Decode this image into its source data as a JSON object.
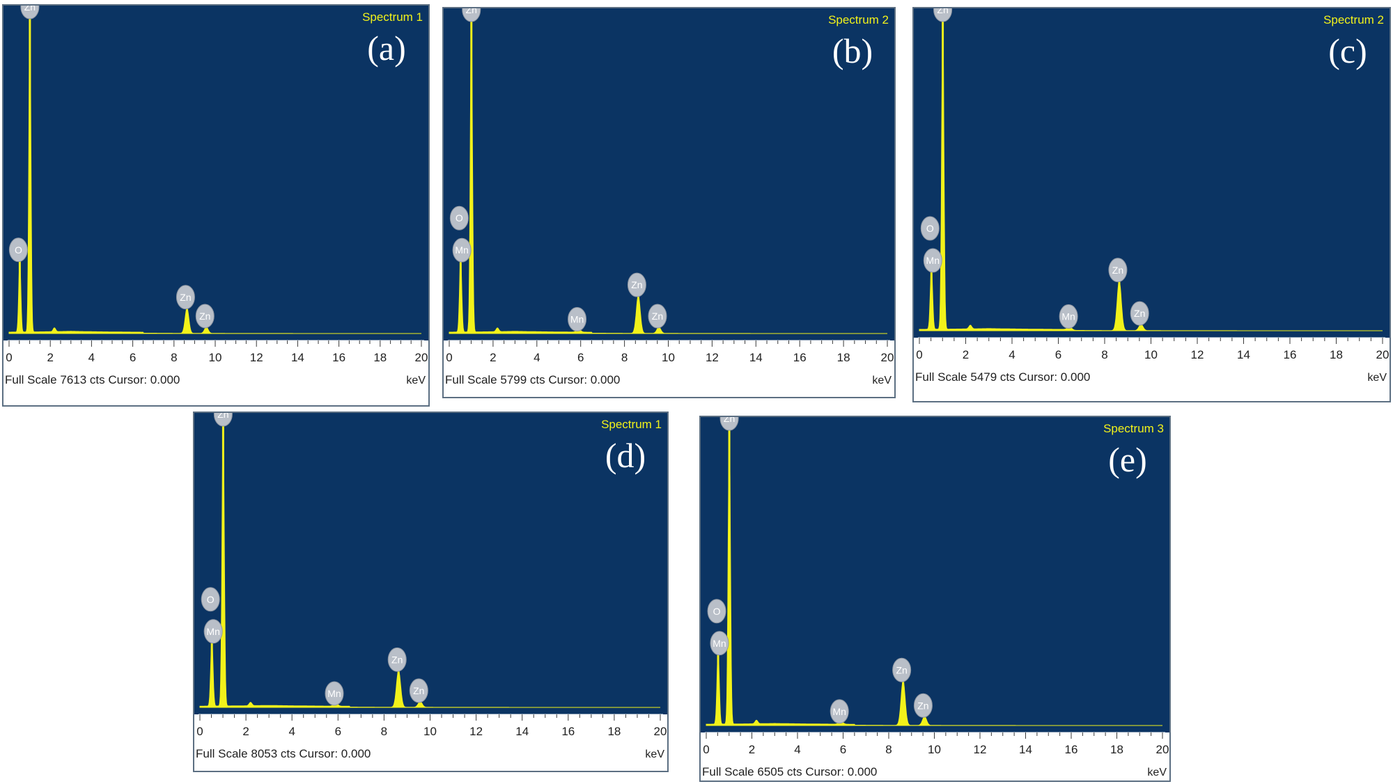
{
  "colors": {
    "plot_bg": "#0b3463",
    "spectrum": "#f2f21a",
    "label_bubble": "#b9bfc8",
    "axis_text": "#1f1f1f",
    "spectrum_title": "#f2f21a"
  },
  "axis": {
    "unit_label": "keV",
    "ticks": [
      "0",
      "2",
      "4",
      "6",
      "8",
      "10",
      "12",
      "14",
      "16",
      "18",
      "20"
    ]
  },
  "panels": [
    {
      "id": "a",
      "letter": "(a)",
      "spectrum_title": "Spectrum 1",
      "footer": "Full Scale 7613 cts Cursor: 0.000"
    },
    {
      "id": "b",
      "letter": "(b)",
      "spectrum_title": "Spectrum 2",
      "footer": "Full Scale 5799 cts Cursor: 0.000"
    },
    {
      "id": "c",
      "letter": "(c)",
      "spectrum_title": "Spectrum 2",
      "footer": "Full Scale 5479 cts Cursor: 0.000"
    },
    {
      "id": "d",
      "letter": "(d)",
      "spectrum_title": "Spectrum 1",
      "footer": "Full Scale 8053 cts Cursor: 0.000"
    },
    {
      "id": "e",
      "letter": "(e)",
      "spectrum_title": "Spectrum 3",
      "footer": "Full Scale 6505 cts Cursor: 0.000"
    }
  ],
  "chart_data": [
    {
      "type": "area",
      "panel": "a",
      "xlabel": "keV",
      "xlim": [
        0,
        20
      ],
      "full_scale_cts": 7613,
      "peaks": [
        {
          "element": "O",
          "energy_keV": 0.52,
          "relative_intensity": 0.23
        },
        {
          "element": "Zn",
          "energy_keV": 1.01,
          "relative_intensity": 1.0
        },
        {
          "element": "Zn",
          "energy_keV": 8.63,
          "relative_intensity": 0.08
        },
        {
          "element": "Zn",
          "energy_keV": 9.57,
          "relative_intensity": 0.02
        }
      ]
    },
    {
      "type": "area",
      "panel": "b",
      "xlabel": "keV",
      "xlim": [
        0,
        20
      ],
      "full_scale_cts": 5799,
      "peaks": [
        {
          "element": "O",
          "energy_keV": 0.52,
          "relative_intensity": 0.24
        },
        {
          "element": "Mn",
          "energy_keV": 0.64,
          "relative_intensity": null
        },
        {
          "element": "Zn",
          "energy_keV": 1.01,
          "relative_intensity": 1.0
        },
        {
          "element": "Mn",
          "energy_keV": 5.9,
          "relative_intensity": 0.01
        },
        {
          "element": "Zn",
          "energy_keV": 8.63,
          "relative_intensity": 0.12
        },
        {
          "element": "Zn",
          "energy_keV": 9.57,
          "relative_intensity": 0.02
        }
      ]
    },
    {
      "type": "area",
      "panel": "c",
      "xlabel": "keV",
      "xlim": [
        0,
        20
      ],
      "full_scale_cts": 5479,
      "peaks": [
        {
          "element": "O",
          "energy_keV": 0.52,
          "relative_intensity": 0.2
        },
        {
          "element": "Mn",
          "energy_keV": 0.64,
          "relative_intensity": null
        },
        {
          "element": "Zn",
          "energy_keV": 1.01,
          "relative_intensity": 1.0
        },
        {
          "element": "Mn",
          "energy_keV": 6.5,
          "relative_intensity": 0.01
        },
        {
          "element": "Zn",
          "energy_keV": 8.63,
          "relative_intensity": 0.16
        },
        {
          "element": "Zn",
          "energy_keV": 9.57,
          "relative_intensity": 0.02
        }
      ]
    },
    {
      "type": "area",
      "panel": "d",
      "xlabel": "keV",
      "xlim": [
        0,
        20
      ],
      "full_scale_cts": 8053,
      "peaks": [
        {
          "element": "O",
          "energy_keV": 0.52,
          "relative_intensity": 0.24
        },
        {
          "element": "Mn",
          "energy_keV": 0.64,
          "relative_intensity": null
        },
        {
          "element": "Zn",
          "energy_keV": 1.01,
          "relative_intensity": 1.0
        },
        {
          "element": "Mn",
          "energy_keV": 5.9,
          "relative_intensity": 0.01
        },
        {
          "element": "Zn",
          "energy_keV": 8.63,
          "relative_intensity": 0.13
        },
        {
          "element": "Zn",
          "energy_keV": 9.57,
          "relative_intensity": 0.02
        }
      ]
    },
    {
      "type": "area",
      "panel": "e",
      "xlabel": "keV",
      "xlim": [
        0,
        20
      ],
      "full_scale_cts": 6505,
      "peaks": [
        {
          "element": "O",
          "energy_keV": 0.52,
          "relative_intensity": 0.25
        },
        {
          "element": "Mn",
          "energy_keV": 0.64,
          "relative_intensity": null
        },
        {
          "element": "Zn",
          "energy_keV": 1.01,
          "relative_intensity": 1.0
        },
        {
          "element": "Mn",
          "energy_keV": 5.9,
          "relative_intensity": 0.01
        },
        {
          "element": "Zn",
          "energy_keV": 8.63,
          "relative_intensity": 0.15
        },
        {
          "element": "Zn",
          "energy_keV": 9.57,
          "relative_intensity": 0.03
        }
      ]
    }
  ]
}
